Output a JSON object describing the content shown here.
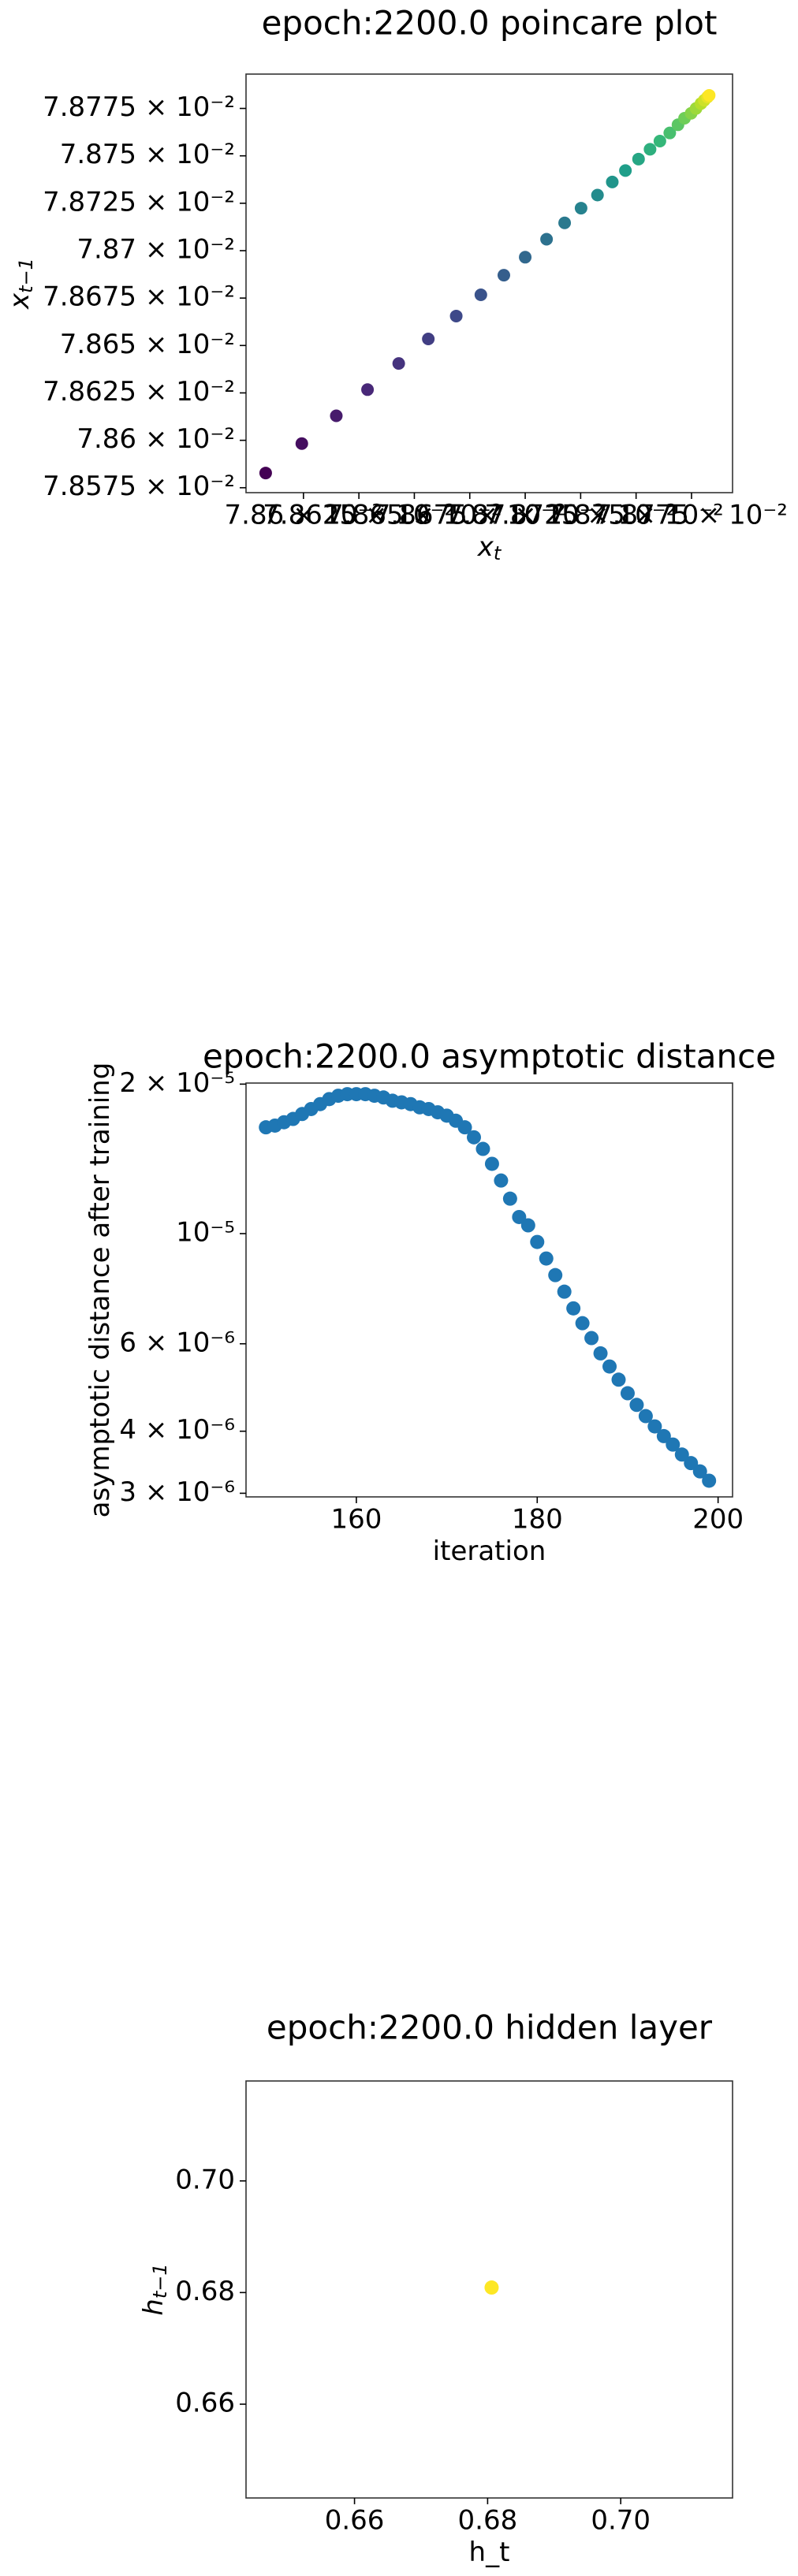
{
  "chart_data": [
    {
      "type": "scatter",
      "title": "epoch:2200.0 poincare plot",
      "x_label": "x",
      "x_label_sub": "t",
      "y_label": "x",
      "y_label_sub": "t−1",
      "cmap": "viridis",
      "x": [
        0.07858296,
        0.07859926,
        0.07861481,
        0.07862889,
        0.07864296,
        0.0786563,
        0.07866889,
        0.07868,
        0.07869037,
        0.0787,
        0.07870963,
        0.07871778,
        0.07872519,
        0.07873259,
        0.07873926,
        0.07874519,
        0.07875111,
        0.0787563,
        0.07876074,
        0.07876519,
        0.07876889,
        0.07877185,
        0.07877481,
        0.07877704,
        0.07877926,
        0.07878074,
        0.07878222,
        0.07878296
      ],
      "values": [
        0.07858276,
        0.07859828,
        0.07861293,
        0.07862672,
        0.07864052,
        0.07865345,
        0.07866552,
        0.07867672,
        0.07868707,
        0.07869655,
        0.07870603,
        0.07871466,
        0.07872241,
        0.07872931,
        0.07873621,
        0.07874224,
        0.07874828,
        0.07875345,
        0.07875776,
        0.07876207,
        0.07876638,
        0.07876983,
        0.07877241,
        0.078775,
        0.07877759,
        0.07877931,
        0.07878103,
        0.0787819
      ],
      "xlim": [
        0.0785741,
        0.0787935
      ],
      "ylim": [
        0.0785724,
        0.0787931
      ],
      "xticks": [
        {
          "value": 0.0786,
          "label": "7.86 × 10⁻²"
        },
        {
          "value": 0.078625,
          "label": "7.8625 × 10⁻²"
        },
        {
          "value": 0.07865,
          "label": "7.865 × 10⁻²"
        },
        {
          "value": 0.078675,
          "label": "7.8675 × 10⁻²"
        },
        {
          "value": 0.0787,
          "label": "7.87 × 10⁻²"
        },
        {
          "value": 0.078725,
          "label": "7.8725 × 10⁻²"
        },
        {
          "value": 0.07875,
          "label": "7.875 × 10⁻²"
        },
        {
          "value": 0.078775,
          "label": "7.8775 × 10⁻²"
        }
      ],
      "yticks": [
        {
          "value": 0.078575,
          "label": "7.8575 × 10⁻²"
        },
        {
          "value": 0.0786,
          "label": "7.86 × 10⁻²"
        },
        {
          "value": 0.078625,
          "label": "7.8625 × 10⁻²"
        },
        {
          "value": 0.07865,
          "label": "7.865 × 10⁻²"
        },
        {
          "value": 0.078675,
          "label": "7.8675 × 10⁻²"
        },
        {
          "value": 0.0787,
          "label": "7.87 × 10⁻²"
        },
        {
          "value": 0.078725,
          "label": "7.8725 × 10⁻²"
        },
        {
          "value": 0.07875,
          "label": "7.875 × 10⁻²"
        },
        {
          "value": 0.078775,
          "label": "7.8775 × 10⁻²"
        }
      ]
    },
    {
      "type": "scatter",
      "title": "epoch:2200.0 asymptotic distance",
      "x_label": "iteration",
      "y_label": "asymptotic distance after training",
      "color": "#1f77b4",
      "ylog": true,
      "x": [
        150,
        151,
        152,
        153,
        154,
        155,
        156,
        157,
        158,
        159,
        160,
        161,
        162,
        163,
        164,
        165,
        166,
        167,
        168,
        169,
        170,
        171,
        172,
        173,
        174,
        175,
        176,
        177,
        178,
        179,
        180,
        181,
        182,
        183,
        184,
        185,
        186,
        187,
        188,
        189,
        190,
        191,
        192,
        193,
        194,
        195,
        196,
        197,
        198,
        199
      ],
      "values": [
        1.637e-05,
        1.65e-05,
        1.676e-05,
        1.702e-05,
        1.741e-05,
        1.782e-05,
        1.823e-05,
        1.866e-05,
        1.895e-05,
        1.909e-05,
        1.909e-05,
        1.909e-05,
        1.895e-05,
        1.88e-05,
        1.852e-05,
        1.838e-05,
        1.823e-05,
        1.796e-05,
        1.782e-05,
        1.755e-05,
        1.728e-05,
        1.688e-05,
        1.637e-05,
        1.563e-05,
        1.481e-05,
        1.382e-05,
        1.279e-05,
        1.176e-05,
        1.08e-05,
        1.039e-05,
        9.62e-06,
        8.91e-06,
        8.25e-06,
        7.64e-06,
        7.07e-06,
        6.6e-06,
        6.16e-06,
        5.74e-06,
        5.4e-06,
        5.08e-06,
        4.77e-06,
        4.52e-06,
        4.29e-06,
        4.09e-06,
        3.91e-06,
        3.76e-06,
        3.59e-06,
        3.45e-06,
        3.32e-06,
        3.18e-06
      ],
      "xlim": [
        147.8,
        201.6
      ],
      "ylim": [
        2.95e-06,
        2.01e-05
      ],
      "xticks": [
        160,
        180,
        200
      ],
      "yticks": [
        {
          "value": 2e-05,
          "label": "2 × 10⁻⁵"
        },
        {
          "value": 1e-05,
          "label": "10⁻⁵"
        },
        {
          "value": 6e-06,
          "label": "6 × 10⁻⁶"
        },
        {
          "value": 4e-06,
          "label": "4 × 10⁻⁶"
        },
        {
          "value": 3e-06,
          "label": "3 × 10⁻⁶"
        }
      ]
    },
    {
      "type": "scatter",
      "title": "epoch:2200.0 hidden layer",
      "x_label": "h_t",
      "y_label": "h",
      "y_label_sub": "t−1",
      "color": "#fde725",
      "x": [
        0.6806
      ],
      "values": [
        0.6809
      ],
      "xlim": [
        0.6437,
        0.7168
      ],
      "ylim": [
        0.6432,
        0.7179
      ],
      "xticks": [
        0.66,
        0.68,
        {
          "value": 0.7,
          "label": "0.70"
        }
      ],
      "yticks": [
        0.66,
        0.68,
        {
          "value": 0.7,
          "label": "0.70"
        }
      ]
    }
  ]
}
